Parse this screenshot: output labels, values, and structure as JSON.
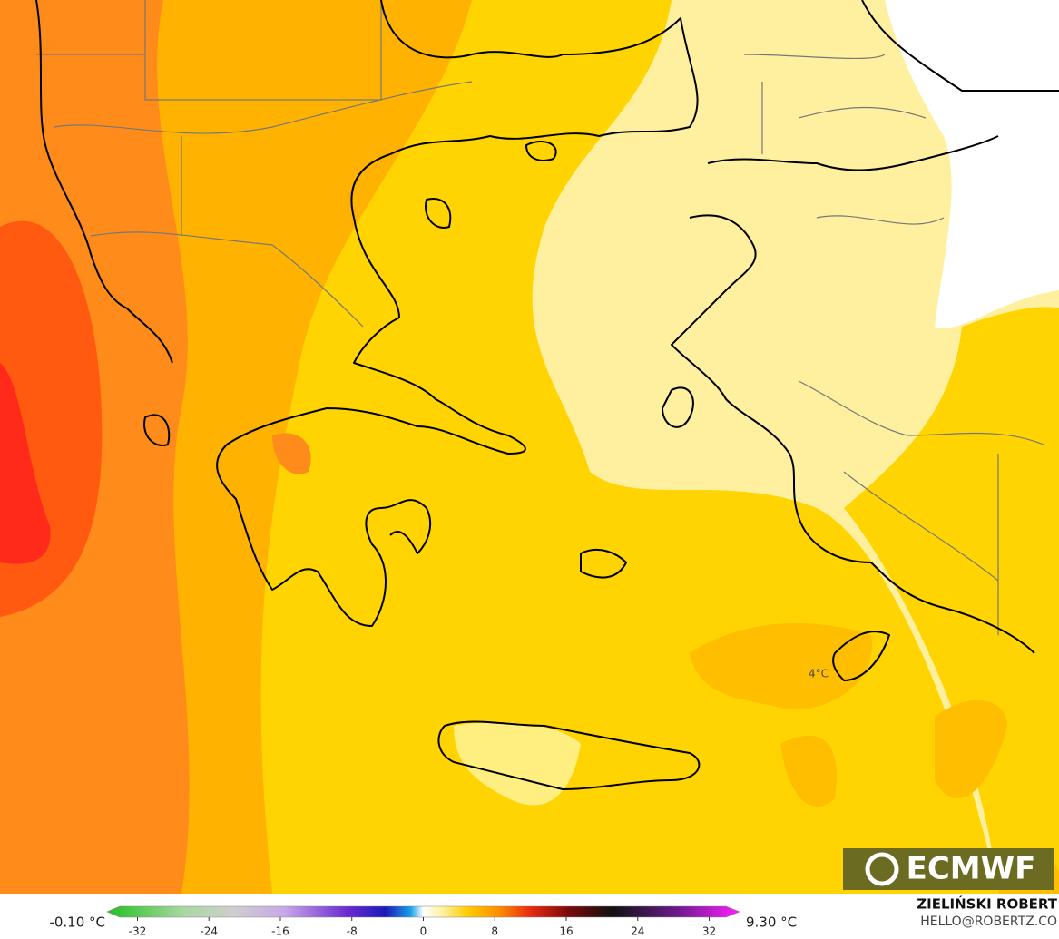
{
  "map": {
    "label": "4°C"
  },
  "logo": "ECMWF",
  "author": "ZIELIŃSKI ROBERT",
  "contact": "HELLO@ROBERTZ.CO",
  "colorbar": {
    "min_label": "-0.10 °C",
    "max_label": "9.30 °C",
    "range": [
      -35.4,
      35.4
    ],
    "ticks": [
      -32,
      -24,
      -16,
      -8,
      0,
      8,
      16,
      24,
      32
    ]
  }
}
